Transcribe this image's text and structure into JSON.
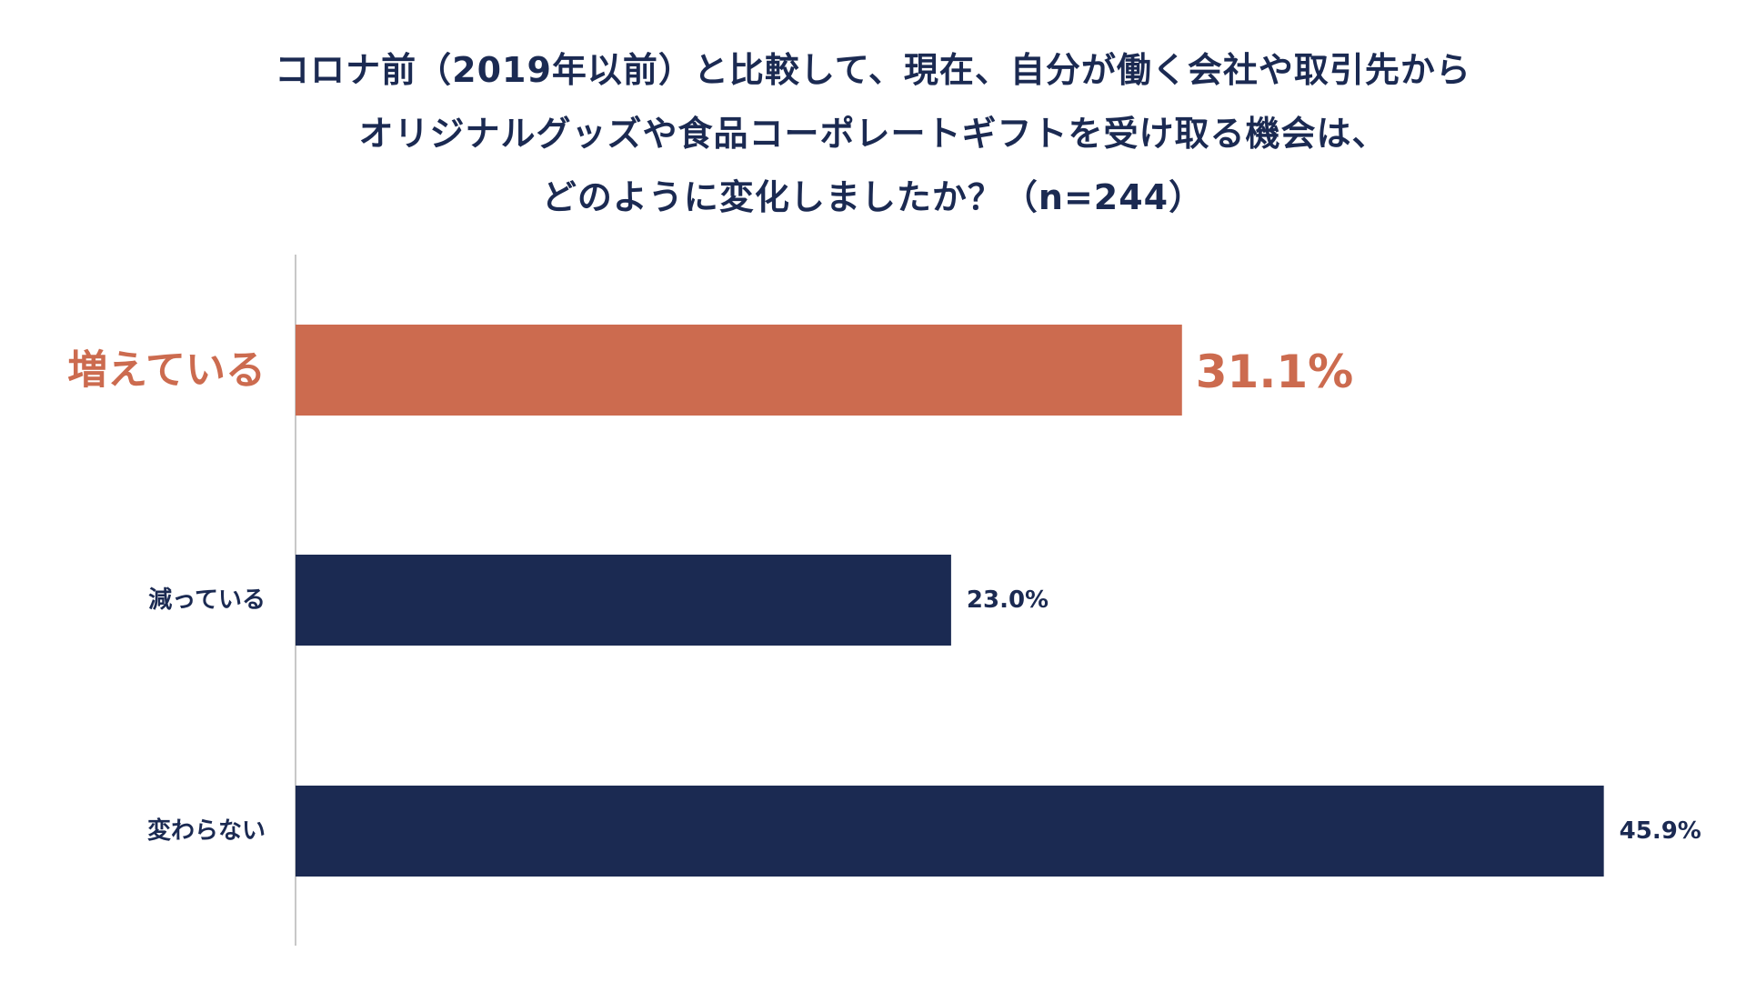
{
  "title_lines": [
    "コロナ前（2019年以前）と比較して、現在、自分が働く会社や取引先から",
    "オリジナルグッズや食品コーポレートギフトを受け取る機会は、",
    "どのように変化しましたか？（n=244）"
  ],
  "colors": {
    "highlight": "#cc6b4f",
    "primary": "#1b2a52",
    "axis": "#c8c8c8"
  },
  "chart_data": {
    "type": "bar",
    "orientation": "horizontal",
    "title": "コロナ前（2019年以前）と比較して、現在、自分が働く会社や取引先からオリジナルグッズや食品コーポレートギフトを受け取る機会は、どのように変化しましたか？（n=244）",
    "categories": [
      "増えている",
      "減っている",
      "変わらない"
    ],
    "values": [
      31.1,
      23.0,
      45.9
    ],
    "value_labels": [
      "31.1%",
      "23.0%",
      "45.9%"
    ],
    "highlighted": [
      true,
      false,
      false
    ],
    "unit": "%",
    "xlim": [
      0,
      46.9
    ],
    "grid": false,
    "legend": "none"
  }
}
